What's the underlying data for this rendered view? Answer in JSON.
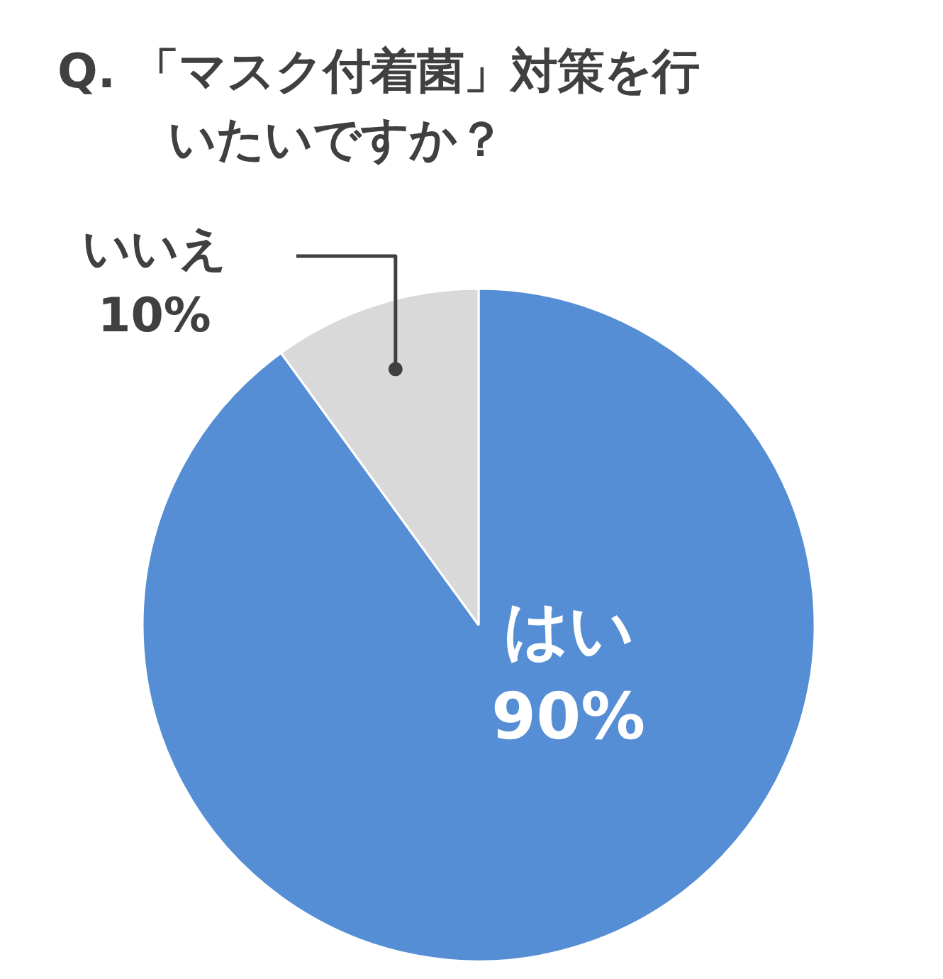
{
  "chart_data": {
    "type": "pie",
    "title": "Q. 「マスク付着菌」対策を行いたいですか？",
    "categories": [
      "はい",
      "いいえ"
    ],
    "values": [
      90,
      10
    ],
    "colors": [
      "#558ed5",
      "#d9d9d9"
    ],
    "value_labels": [
      "90%",
      "10%"
    ]
  }
}
